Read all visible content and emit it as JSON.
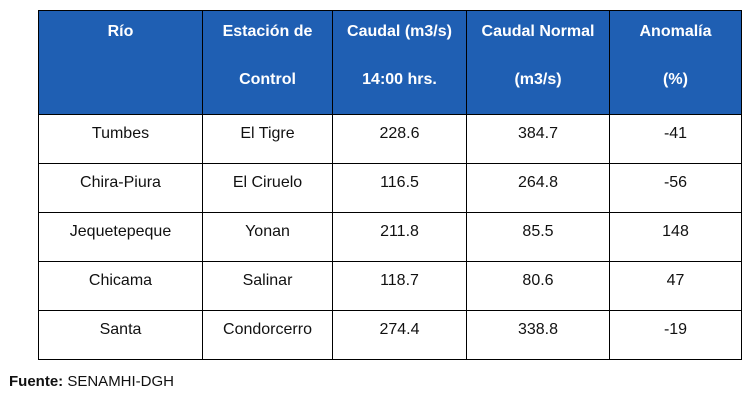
{
  "table": {
    "headers": [
      {
        "line1": "Río",
        "line2": ""
      },
      {
        "line1": "Estación de",
        "line2": "Control"
      },
      {
        "line1": "Caudal (m3/s)",
        "line2": "14:00 hrs."
      },
      {
        "line1": "Caudal Normal",
        "line2": "(m3/s)"
      },
      {
        "line1": "Anomalía",
        "line2": "(%)"
      }
    ],
    "rows": [
      {
        "rio": "Tumbes",
        "estacion": "El Tigre",
        "caudal": "228.6",
        "normal": "384.7",
        "anomalia": "-41"
      },
      {
        "rio": "Chira-Piura",
        "estacion": "El Ciruelo",
        "caudal": "116.5",
        "normal": "264.8",
        "anomalia": "-56"
      },
      {
        "rio": "Jequetepeque",
        "estacion": "Yonan",
        "caudal": "211.8",
        "normal": "85.5",
        "anomalia": "148"
      },
      {
        "rio": "Chicama",
        "estacion": "Salinar",
        "caudal": "118.7",
        "normal": "80.6",
        "anomalia": "47"
      },
      {
        "rio": "Santa",
        "estacion": "Condorcerro",
        "caudal": "274.4",
        "normal": "338.8",
        "anomalia": "-19"
      }
    ]
  },
  "source": {
    "label": "Fuente:",
    "value": "SENAMHI-DGH"
  },
  "colors": {
    "header_background": "#1f5fb3",
    "header_text": "#ffffff"
  }
}
